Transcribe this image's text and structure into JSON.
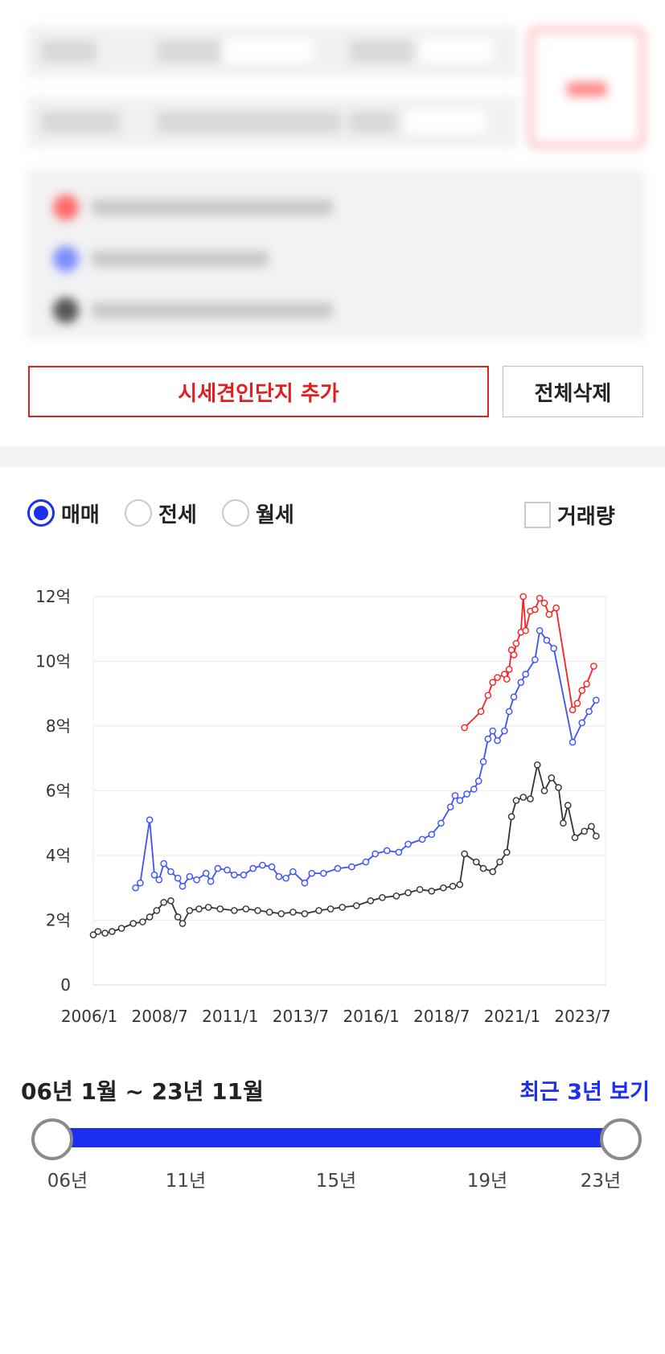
{
  "actions": {
    "add_label": "시세견인단지 추가",
    "clear_label": "전체삭제"
  },
  "trade_types": [
    {
      "label": "매매",
      "checked": true
    },
    {
      "label": "전세",
      "checked": false
    },
    {
      "label": "월세",
      "checked": false
    }
  ],
  "volume_toggle": {
    "label": "거래량",
    "checked": false
  },
  "colors": {
    "accent": "#1c2ff0",
    "red": "#e02020",
    "series_red": "#ff1e1e",
    "series_blue": "#3c50ff",
    "series_black": "#333333"
  },
  "range": {
    "text": "06년 1월 ~ 23년 11월",
    "recent_label": "최근 3년 보기",
    "ticks": [
      "06년",
      "11년",
      "15년",
      "19년",
      "23년"
    ],
    "start_value": "2006-01",
    "end_value": "2023-11"
  },
  "chart_data": {
    "type": "line",
    "y_unit": "억",
    "ylim": [
      0,
      12
    ],
    "yticks": [
      0,
      2,
      4,
      6,
      8,
      10,
      12
    ],
    "ytick_labels": [
      "0",
      "2억",
      "4억",
      "6억",
      "8억",
      "10억",
      "12억"
    ],
    "xlim": [
      "2006-01",
      "2024-03"
    ],
    "xticks": [
      "2006-01",
      "2008-07",
      "2011-01",
      "2013-07",
      "2016-01",
      "2018-07",
      "2021-01",
      "2023-07"
    ],
    "xtick_labels": [
      "2006/1",
      "2008/7",
      "2011/1",
      "2013/7",
      "2016/1",
      "2018/7",
      "2021/1",
      "2023/7"
    ],
    "grid": true,
    "series": [
      {
        "color": "#ff1e1e",
        "points": [
          [
            "2019-03",
            7.95
          ],
          [
            "2019-10",
            8.45
          ],
          [
            "2020-01",
            8.95
          ],
          [
            "2020-03",
            9.35
          ],
          [
            "2020-05",
            9.5
          ],
          [
            "2020-08",
            9.6
          ],
          [
            "2020-09",
            9.45
          ],
          [
            "2020-10",
            9.75
          ],
          [
            "2020-11",
            10.35
          ],
          [
            "2020-12",
            10.2
          ],
          [
            "2021-01",
            10.55
          ],
          [
            "2021-03",
            10.9
          ],
          [
            "2021-04",
            12.0
          ],
          [
            "2021-05",
            10.95
          ],
          [
            "2021-07",
            11.55
          ],
          [
            "2021-09",
            11.6
          ],
          [
            "2021-11",
            11.95
          ],
          [
            "2022-01",
            11.8
          ],
          [
            "2022-03",
            11.45
          ],
          [
            "2022-06",
            11.65
          ],
          [
            "2023-01",
            8.5
          ],
          [
            "2023-03",
            8.7
          ],
          [
            "2023-05",
            9.1
          ],
          [
            "2023-07",
            9.3
          ],
          [
            "2023-10",
            9.85
          ]
        ]
      },
      {
        "color": "#3c50ff",
        "points": [
          [
            "2007-07",
            3.0
          ],
          [
            "2007-09",
            3.15
          ],
          [
            "2008-01",
            5.1
          ],
          [
            "2008-03",
            3.4
          ],
          [
            "2008-05",
            3.25
          ],
          [
            "2008-07",
            3.75
          ],
          [
            "2008-10",
            3.5
          ],
          [
            "2009-01",
            3.3
          ],
          [
            "2009-03",
            3.05
          ],
          [
            "2009-06",
            3.35
          ],
          [
            "2009-09",
            3.25
          ],
          [
            "2010-01",
            3.45
          ],
          [
            "2010-03",
            3.2
          ],
          [
            "2010-06",
            3.6
          ],
          [
            "2010-10",
            3.55
          ],
          [
            "2011-01",
            3.4
          ],
          [
            "2011-05",
            3.4
          ],
          [
            "2011-09",
            3.6
          ],
          [
            "2012-01",
            3.7
          ],
          [
            "2012-05",
            3.65
          ],
          [
            "2012-08",
            3.35
          ],
          [
            "2012-11",
            3.3
          ],
          [
            "2013-02",
            3.5
          ],
          [
            "2013-07",
            3.15
          ],
          [
            "2013-10",
            3.45
          ],
          [
            "2014-03",
            3.45
          ],
          [
            "2014-09",
            3.6
          ],
          [
            "2015-03",
            3.65
          ],
          [
            "2015-09",
            3.8
          ],
          [
            "2016-01",
            4.05
          ],
          [
            "2016-06",
            4.15
          ],
          [
            "2016-11",
            4.1
          ],
          [
            "2017-03",
            4.35
          ],
          [
            "2017-09",
            4.5
          ],
          [
            "2018-01",
            4.65
          ],
          [
            "2018-05",
            5.0
          ],
          [
            "2018-09",
            5.5
          ],
          [
            "2018-11",
            5.85
          ],
          [
            "2019-01",
            5.7
          ],
          [
            "2019-04",
            5.9
          ],
          [
            "2019-07",
            6.05
          ],
          [
            "2019-09",
            6.3
          ],
          [
            "2019-11",
            6.9
          ],
          [
            "2020-01",
            7.6
          ],
          [
            "2020-03",
            7.85
          ],
          [
            "2020-05",
            7.55
          ],
          [
            "2020-08",
            7.85
          ],
          [
            "2020-10",
            8.45
          ],
          [
            "2020-12",
            8.9
          ],
          [
            "2021-03",
            9.35
          ],
          [
            "2021-05",
            9.6
          ],
          [
            "2021-09",
            10.05
          ],
          [
            "2021-11",
            10.95
          ],
          [
            "2022-02",
            10.65
          ],
          [
            "2022-05",
            10.4
          ],
          [
            "2023-01",
            7.5
          ],
          [
            "2023-05",
            8.1
          ],
          [
            "2023-08",
            8.45
          ],
          [
            "2023-11",
            8.8
          ]
        ]
      },
      {
        "color": "#333333",
        "points": [
          [
            "2006-01",
            1.55
          ],
          [
            "2006-03",
            1.65
          ],
          [
            "2006-06",
            1.6
          ],
          [
            "2006-09",
            1.65
          ],
          [
            "2007-01",
            1.75
          ],
          [
            "2007-06",
            1.9
          ],
          [
            "2007-10",
            1.95
          ],
          [
            "2008-01",
            2.1
          ],
          [
            "2008-04",
            2.3
          ],
          [
            "2008-07",
            2.55
          ],
          [
            "2008-10",
            2.6
          ],
          [
            "2009-01",
            2.1
          ],
          [
            "2009-03",
            1.9
          ],
          [
            "2009-06",
            2.3
          ],
          [
            "2009-10",
            2.35
          ],
          [
            "2010-02",
            2.4
          ],
          [
            "2010-07",
            2.35
          ],
          [
            "2011-01",
            2.3
          ],
          [
            "2011-06",
            2.35
          ],
          [
            "2011-11",
            2.3
          ],
          [
            "2012-04",
            2.25
          ],
          [
            "2012-09",
            2.2
          ],
          [
            "2013-02",
            2.25
          ],
          [
            "2013-07",
            2.2
          ],
          [
            "2014-01",
            2.3
          ],
          [
            "2014-06",
            2.35
          ],
          [
            "2014-11",
            2.4
          ],
          [
            "2015-05",
            2.45
          ],
          [
            "2015-11",
            2.6
          ],
          [
            "2016-04",
            2.7
          ],
          [
            "2016-10",
            2.75
          ],
          [
            "2017-03",
            2.85
          ],
          [
            "2017-08",
            2.95
          ],
          [
            "2018-01",
            2.9
          ],
          [
            "2018-06",
            3.0
          ],
          [
            "2018-10",
            3.05
          ],
          [
            "2019-01",
            3.1
          ],
          [
            "2019-03",
            4.05
          ],
          [
            "2019-08",
            3.8
          ],
          [
            "2019-11",
            3.6
          ],
          [
            "2020-03",
            3.5
          ],
          [
            "2020-06",
            3.8
          ],
          [
            "2020-09",
            4.1
          ],
          [
            "2020-11",
            5.2
          ],
          [
            "2021-01",
            5.7
          ],
          [
            "2021-04",
            5.8
          ],
          [
            "2021-07",
            5.75
          ],
          [
            "2021-10",
            6.8
          ],
          [
            "2022-01",
            6.0
          ],
          [
            "2022-04",
            6.4
          ],
          [
            "2022-07",
            6.1
          ],
          [
            "2022-09",
            5.0
          ],
          [
            "2022-11",
            5.55
          ],
          [
            "2023-02",
            4.55
          ],
          [
            "2023-06",
            4.75
          ],
          [
            "2023-09",
            4.9
          ],
          [
            "2023-11",
            4.6
          ]
        ]
      }
    ]
  }
}
